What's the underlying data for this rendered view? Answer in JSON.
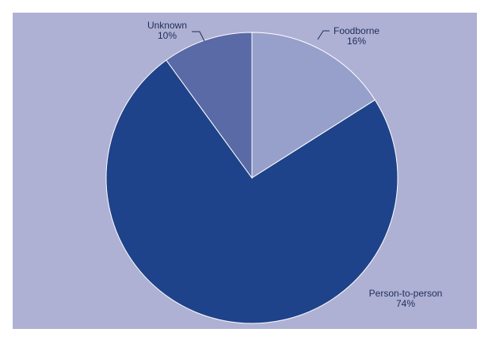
{
  "chart_data": {
    "type": "pie",
    "title": "",
    "slices": [
      {
        "label": "Foodborne",
        "percent_label": "16%",
        "value": 16,
        "color": "#97a0ca"
      },
      {
        "label": "Person-to-person",
        "percent_label": "74%",
        "value": 74,
        "color": "#1f438a"
      },
      {
        "label": "Unknown",
        "percent_label": "10%",
        "value": 10,
        "color": "#5a6aa6"
      }
    ],
    "start_angle": "12 o'clock",
    "direction": "clockwise",
    "legend": "none",
    "background_color": "#aeb1d3",
    "label_color": "#1f2d5c"
  }
}
